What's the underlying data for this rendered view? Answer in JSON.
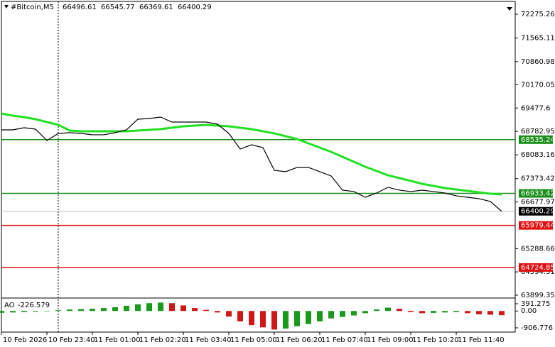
{
  "chart_data": {
    "type": "line",
    "symbol": "#Bitcoin,M5",
    "ohlc": [
      66496.61,
      66545.77,
      66369.61,
      66400.29
    ],
    "categories": [
      "10 Feb 2026",
      null,
      null,
      null,
      "10 Feb 23:40",
      null,
      null,
      null,
      "11 Feb 01:00",
      null,
      null,
      null,
      "11 Feb 02:20",
      null,
      null,
      null,
      "11 Feb 03:40",
      null,
      null,
      null,
      "11 Feb 05:00",
      null,
      null,
      null,
      "11 Feb 06:20",
      null,
      null,
      null,
      "11 Feb 07:40",
      null,
      null,
      null,
      "11 Feb 09:00",
      null,
      null,
      null,
      "11 Feb 10:20",
      null,
      null,
      null,
      "11 Feb 11:40",
      null,
      null,
      null,
      null
    ],
    "close": {
      "color": "#000000",
      "values": [
        68828,
        68828,
        68891,
        68849,
        68510,
        68722,
        68743,
        68722,
        68680,
        68680,
        68743,
        68828,
        69145,
        69166,
        69208,
        69060,
        69060,
        69060,
        69060,
        68997,
        68722,
        68256,
        68383,
        68298,
        67622,
        67580,
        67707,
        67707,
        67580,
        67453,
        67030,
        66988,
        66818,
        66945,
        67115,
        67030,
        66988,
        67030,
        66988,
        66945,
        66861,
        66818,
        66776,
        66692,
        66400.29
      ]
    },
    "ma": {
      "color": "#22e022",
      "values": [
        69314,
        69251,
        69208,
        69145,
        69060,
        68976,
        68806,
        68785,
        68785,
        68785,
        68785,
        68785,
        68806,
        68827,
        68849,
        68891,
        68933,
        68954,
        68976,
        68954,
        68933,
        68891,
        68849,
        68785,
        68722,
        68637,
        68553,
        68425,
        68299,
        68172,
        68024,
        67876,
        67728,
        67601,
        67474,
        67389,
        67305,
        67220,
        67157,
        67093,
        67051,
        67009,
        66966,
        66924,
        66903
      ]
    },
    "ylim": [
      63772,
      72698
    ],
    "yticks": [
      72275.26,
      71565.11,
      70860.98,
      70170.05,
      69477.6,
      68782.95,
      68083.16,
      67373.42,
      66677.97,
      65288.66,
      64594.31,
      63899.35
    ],
    "levels": [
      {
        "value": 68535.24,
        "color": "#1a8f1a"
      },
      {
        "value": 66933.42,
        "color": "#1a8f1a"
      },
      {
        "value": 65979.44,
        "color": "#e01010"
      },
      {
        "value": 64724.85,
        "color": "#e01010"
      }
    ],
    "current": {
      "value": 66400.29,
      "color": "#000000"
    },
    "ao": {
      "name": "AO",
      "up_color": "#1a9a1a",
      "down_color": "#d01818",
      "values": [
        -100,
        -80,
        -60,
        -40,
        -20,
        40,
        80,
        100,
        120,
        160,
        200,
        280,
        360,
        420,
        450,
        420,
        300,
        160,
        60,
        -80,
        -300,
        -560,
        -760,
        -880,
        -1000,
        -950,
        -820,
        -700,
        -560,
        -400,
        -320,
        -240,
        -120,
        80,
        180,
        120,
        -60,
        -120,
        -100,
        -80,
        -60,
        -120,
        -180,
        -200,
        -226.579
      ],
      "ylim": [
        -1212,
        620
      ],
      "yticks": [
        391.275,
        {
          "value": 0,
          "label": "0.00"
        },
        -906.776
      ]
    }
  }
}
